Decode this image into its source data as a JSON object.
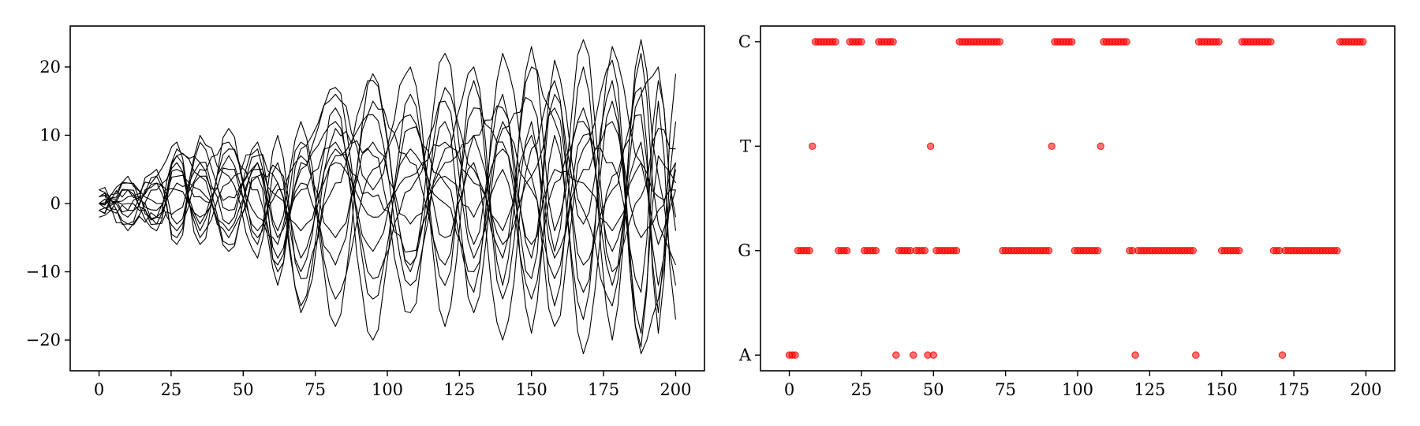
{
  "chart_data": [
    {
      "type": "line",
      "title": "",
      "xlabel": "",
      "ylabel": "",
      "xlim": [
        -10,
        210
      ],
      "ylim": [
        -24.5,
        26
      ],
      "xticks": [
        0,
        25,
        50,
        75,
        100,
        125,
        150,
        175,
        200
      ],
      "yticks": [
        -20,
        -10,
        0,
        10,
        20
      ],
      "xtick_labels": [
        "0",
        "25",
        "50",
        "75",
        "100",
        "125",
        "150",
        "175",
        "200"
      ],
      "ytick_labels": [
        "−20",
        "−10",
        "0",
        "10",
        "20"
      ],
      "grid": false,
      "n_series": 14,
      "x": [
        0,
        10,
        20,
        27,
        35,
        45,
        55,
        62,
        70,
        82,
        95,
        108,
        120,
        130,
        140,
        150,
        158,
        168,
        178,
        188,
        194,
        200
      ],
      "series": [
        {
          "values": [
            0,
            3,
            -2,
            8,
            4,
            -7,
            4,
            -12,
            8,
            16,
            2,
            20,
            -18,
            10,
            14,
            -8,
            16,
            -3,
            18,
            -22,
            -14,
            6
          ]
        },
        {
          "values": [
            1,
            -3,
            4,
            9,
            -6,
            11,
            -5,
            3,
            -10,
            14,
            -20,
            16,
            -12,
            18,
            -14,
            12,
            -15,
            20,
            -20,
            24,
            4,
            -12
          ]
        },
        {
          "values": [
            -1,
            2,
            -4,
            7,
            6,
            -3,
            9,
            -4,
            12,
            -18,
            19,
            -10,
            22,
            -6,
            16,
            -19,
            10,
            -17,
            23,
            6,
            -6,
            2
          ]
        },
        {
          "values": [
            2,
            -2,
            3,
            -5,
            10,
            4,
            -8,
            6,
            -16,
            7,
            13,
            -12,
            8,
            20,
            -12,
            23,
            -4,
            14,
            -12,
            16,
            20,
            -4
          ]
        },
        {
          "values": [
            0,
            4,
            -3,
            5,
            -4,
            8,
            2,
            -9,
            5,
            17,
            -14,
            11,
            3,
            -13,
            22,
            4,
            -18,
            8,
            21,
            -21,
            15,
            -17
          ]
        },
        {
          "values": [
            -2,
            -1,
            5,
            -6,
            9,
            -1,
            7,
            3,
            -15,
            11,
            7,
            -16,
            17,
            5,
            -8,
            20,
            12,
            -22,
            4,
            13,
            -16,
            19
          ]
        },
        {
          "values": [
            1,
            2,
            -1,
            4,
            2,
            -5,
            6,
            -8,
            3,
            -9,
            15,
            6,
            -9,
            14,
            9,
            -11,
            21,
            -1,
            -15,
            22,
            -3,
            -9
          ]
        },
        {
          "values": [
            0,
            -4,
            2,
            6,
            -3,
            7,
            -6,
            10,
            -11,
            3,
            18,
            -9,
            12,
            -16,
            11,
            15,
            -7,
            24,
            -10,
            1,
            11,
            8
          ]
        },
        {
          "values": [
            -1,
            1,
            4,
            -3,
            5,
            9,
            -2,
            -6,
            9,
            -14,
            5,
            13,
            -5,
            6,
            -20,
            8,
            18,
            -13,
            15,
            -19,
            7,
            3
          ]
        },
        {
          "values": [
            2,
            -3,
            -2,
            7,
            -5,
            3,
            8,
            -10,
            6,
            12,
            -11,
            2,
            15,
            -8,
            5,
            -14,
            3,
            12,
            -7,
            9,
            -12,
            5
          ]
        },
        {
          "values": [
            0,
            2,
            -3,
            -1,
            6,
            -6,
            4,
            5,
            -8,
            8,
            1,
            -7,
            6,
            10,
            -6,
            4,
            14,
            -9,
            2,
            17,
            -19,
            12
          ]
        },
        {
          "values": [
            1,
            -1,
            3,
            2,
            -2,
            5,
            -4,
            2,
            7,
            -5,
            9,
            -3,
            4,
            -2,
            8,
            -6,
            5,
            3,
            -4,
            6,
            1,
            2
          ]
        },
        {
          "values": [
            -1,
            3,
            0,
            -4,
            4,
            1,
            6,
            -5,
            2,
            9,
            -7,
            8,
            0,
            -10,
            12,
            2,
            -11,
            10,
            6,
            -13,
            18,
            -2
          ]
        },
        {
          "values": [
            0,
            0,
            -2,
            3,
            1,
            -4,
            5,
            1,
            -4,
            6,
            -2,
            4,
            9,
            3,
            -4,
            10,
            -8,
            5,
            12,
            -5,
            -1,
            6
          ]
        }
      ]
    },
    {
      "type": "scatter",
      "title": "",
      "xlabel": "",
      "ylabel": "",
      "xlim": [
        -10,
        210
      ],
      "ylim": [
        -0.15,
        3.15
      ],
      "xticks": [
        0,
        25,
        50,
        75,
        100,
        125,
        150,
        175,
        200
      ],
      "xtick_labels": [
        "0",
        "25",
        "50",
        "75",
        "100",
        "125",
        "150",
        "175",
        "200"
      ],
      "yticks": [
        0,
        1,
        2,
        3
      ],
      "ytick_labels": [
        "A",
        "G",
        "T",
        "C"
      ],
      "grid": false,
      "color": "#ff0000",
      "points": {
        "A": [
          0,
          1,
          2,
          37,
          43,
          48,
          50,
          120,
          141,
          171
        ],
        "G": [
          3,
          4,
          5,
          6,
          7,
          17,
          18,
          19,
          20,
          26,
          27,
          28,
          29,
          30,
          38,
          39,
          40,
          41,
          42,
          44,
          45,
          46,
          47,
          51,
          52,
          53,
          54,
          55,
          56,
          57,
          58,
          74,
          75,
          76,
          77,
          78,
          79,
          80,
          81,
          82,
          83,
          84,
          85,
          86,
          87,
          88,
          89,
          90,
          99,
          100,
          101,
          102,
          103,
          104,
          105,
          106,
          107,
          118,
          119,
          121,
          122,
          123,
          124,
          125,
          126,
          127,
          128,
          129,
          130,
          131,
          132,
          133,
          134,
          135,
          136,
          137,
          138,
          139,
          140,
          150,
          151,
          152,
          153,
          154,
          155,
          156,
          168,
          169,
          170,
          172,
          173,
          174,
          175,
          176,
          177,
          178,
          179,
          180,
          181,
          182,
          183,
          184,
          185,
          186,
          187,
          188,
          189,
          190
        ],
        "T": [
          8,
          49,
          91,
          108
        ],
        "C": [
          9,
          10,
          11,
          12,
          13,
          14,
          15,
          16,
          21,
          22,
          23,
          24,
          25,
          31,
          32,
          33,
          34,
          35,
          36,
          59,
          60,
          61,
          62,
          63,
          64,
          65,
          66,
          67,
          68,
          69,
          70,
          71,
          72,
          73,
          92,
          93,
          94,
          95,
          96,
          97,
          98,
          109,
          110,
          111,
          112,
          113,
          114,
          115,
          116,
          117,
          142,
          143,
          144,
          145,
          146,
          147,
          148,
          149,
          157,
          158,
          159,
          160,
          161,
          162,
          163,
          164,
          165,
          166,
          167,
          191,
          192,
          193,
          194,
          195,
          196,
          197,
          198,
          199
        ]
      }
    }
  ]
}
